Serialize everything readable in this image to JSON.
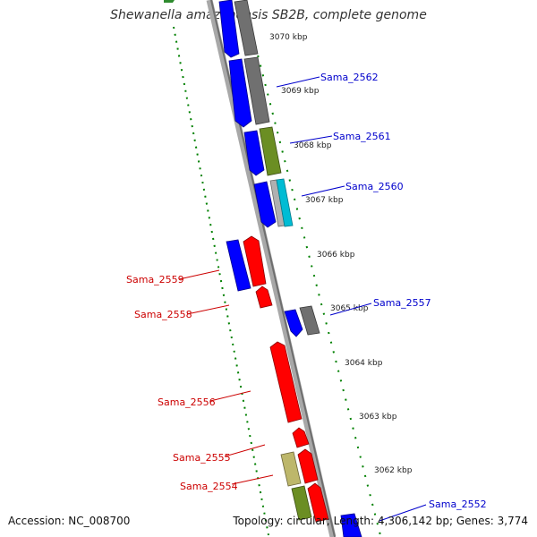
{
  "title": "Shewanella amazonensis SB2B, complete genome",
  "footer": {
    "accession": "Accession: NC_008700",
    "summary": "Topology: circular; Length: 4,306,142 bp; Genes: 3,774"
  },
  "colors": {
    "forward_label": "#0000cc",
    "reverse_label": "#cc0000",
    "backbone": "#808080",
    "tick": "#008000",
    "gene_blue": "#0000ff",
    "gene_red": "#ff0000",
    "gene_gray": "#707070",
    "gene_olive": "#6b8e23",
    "gene_cyan": "#00bcd4",
    "gene_khaki": "#bdb76b"
  },
  "map": {
    "scale_labels": [
      "3070 kbp",
      "3069 kbp",
      "3068 kbp",
      "3067 kbp",
      "3066 kbp",
      "3065 kbp",
      "3064 kbp",
      "3063 kbp",
      "3062 kbp"
    ],
    "gene_labels": [
      {
        "text": "Sama_2562",
        "strand": "forward"
      },
      {
        "text": "Sama_2561",
        "strand": "forward"
      },
      {
        "text": "Sama_2560",
        "strand": "forward"
      },
      {
        "text": "Sama_2559",
        "strand": "reverse"
      },
      {
        "text": "Sama_2558",
        "strand": "reverse"
      },
      {
        "text": "Sama_2557",
        "strand": "forward"
      },
      {
        "text": "Sama_2556",
        "strand": "reverse"
      },
      {
        "text": "Sama_2555",
        "strand": "reverse"
      },
      {
        "text": "Sama_2554",
        "strand": "reverse"
      },
      {
        "text": "Sama_2552",
        "strand": "forward"
      }
    ]
  }
}
